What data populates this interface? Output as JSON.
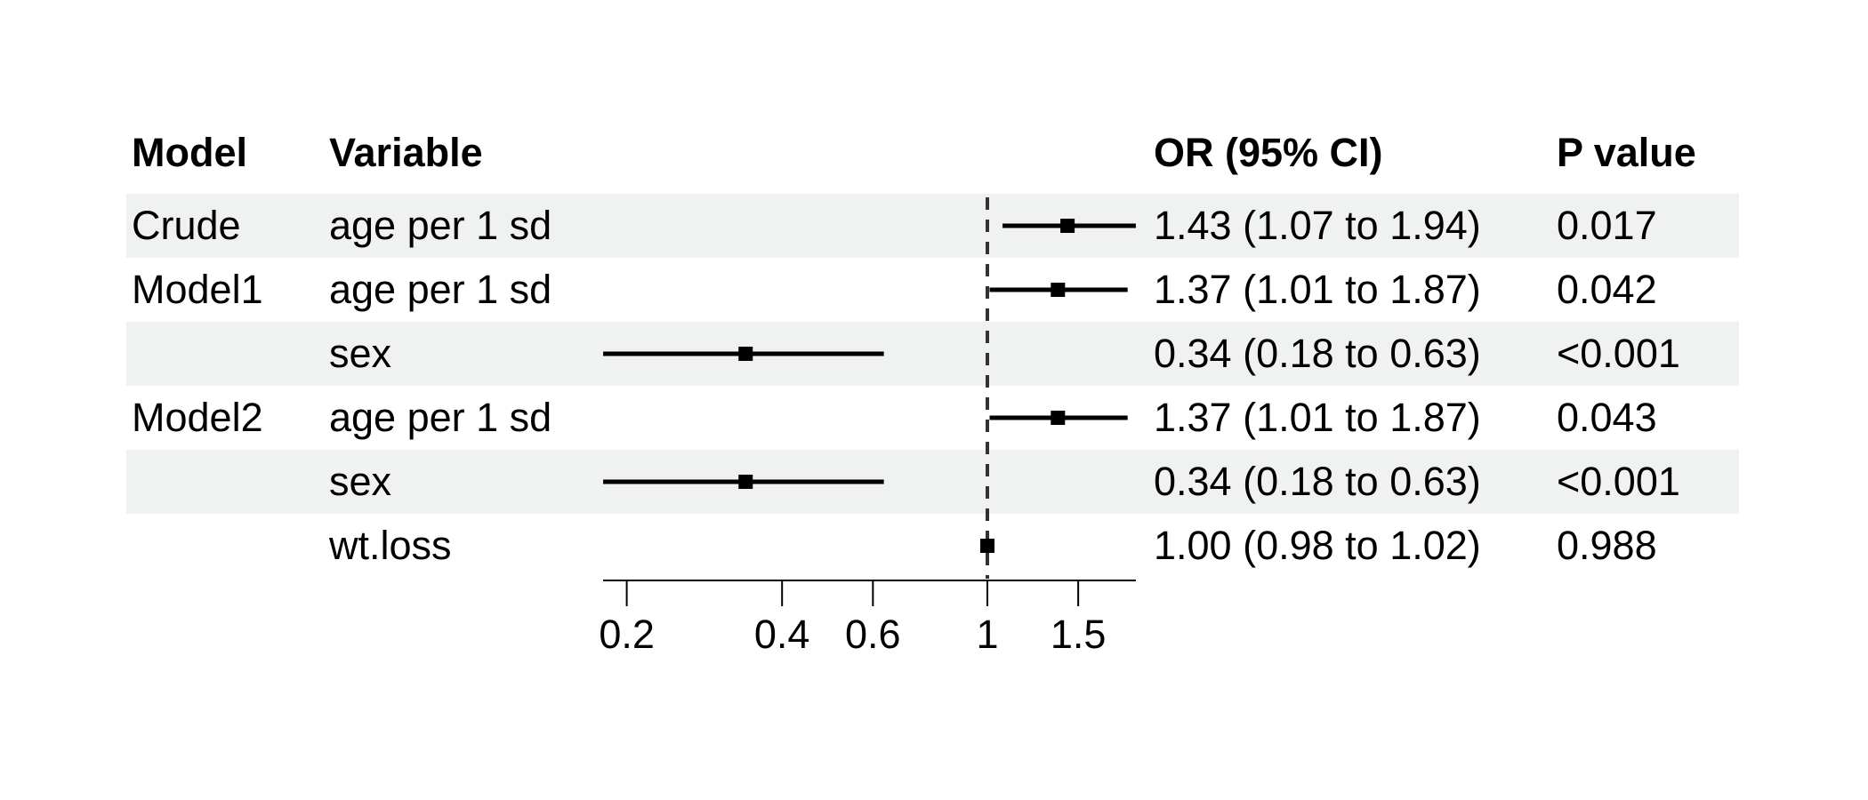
{
  "table": {
    "columns": {
      "model": "Model",
      "variable": "Variable",
      "or": "OR (95% CI)",
      "p": "P value"
    }
  },
  "chart_data": {
    "type": "forest",
    "x_scale": "log10",
    "x_range": [
      0.18,
      1.94
    ],
    "x_ticks": [
      0.2,
      0.4,
      0.6,
      1,
      1.5
    ],
    "x_tick_labels": [
      "0.2",
      "0.4",
      "0.6",
      "1",
      "1.5"
    ],
    "ref_line": 1,
    "box_size": 16,
    "grid": "off",
    "legend": "none",
    "rows": [
      {
        "model": "Crude",
        "variable": "age per 1 sd",
        "or": 1.43,
        "ci_low": 1.07,
        "ci_high": 1.94,
        "or_ci_text": "1.43 (1.07 to 1.94)",
        "p_text": "0.017",
        "shaded": true
      },
      {
        "model": "Model1",
        "variable": "age per 1 sd",
        "or": 1.37,
        "ci_low": 1.01,
        "ci_high": 1.87,
        "or_ci_text": "1.37 (1.01 to 1.87)",
        "p_text": "0.042",
        "shaded": false
      },
      {
        "model": "",
        "variable": "sex",
        "or": 0.34,
        "ci_low": 0.18,
        "ci_high": 0.63,
        "or_ci_text": "0.34 (0.18 to 0.63)",
        "p_text": "<0.001",
        "shaded": true
      },
      {
        "model": "Model2",
        "variable": "age per 1 sd",
        "or": 1.37,
        "ci_low": 1.01,
        "ci_high": 1.87,
        "or_ci_text": "1.37 (1.01 to 1.87)",
        "p_text": "0.043",
        "shaded": false
      },
      {
        "model": "",
        "variable": "sex",
        "or": 0.34,
        "ci_low": 0.18,
        "ci_high": 0.63,
        "or_ci_text": "0.34 (0.18 to 0.63)",
        "p_text": "<0.001",
        "shaded": true
      },
      {
        "model": "",
        "variable": "wt.loss",
        "or": 1.0,
        "ci_low": 0.98,
        "ci_high": 1.02,
        "or_ci_text": "1.00 (0.98 to 1.02)",
        "p_text": "0.988",
        "shaded": false
      }
    ]
  },
  "colors": {
    "row_shade": "#eff2f1",
    "text": "#000000",
    "line": "#000000",
    "ref_line": "#333333",
    "background": "#ffffff"
  }
}
